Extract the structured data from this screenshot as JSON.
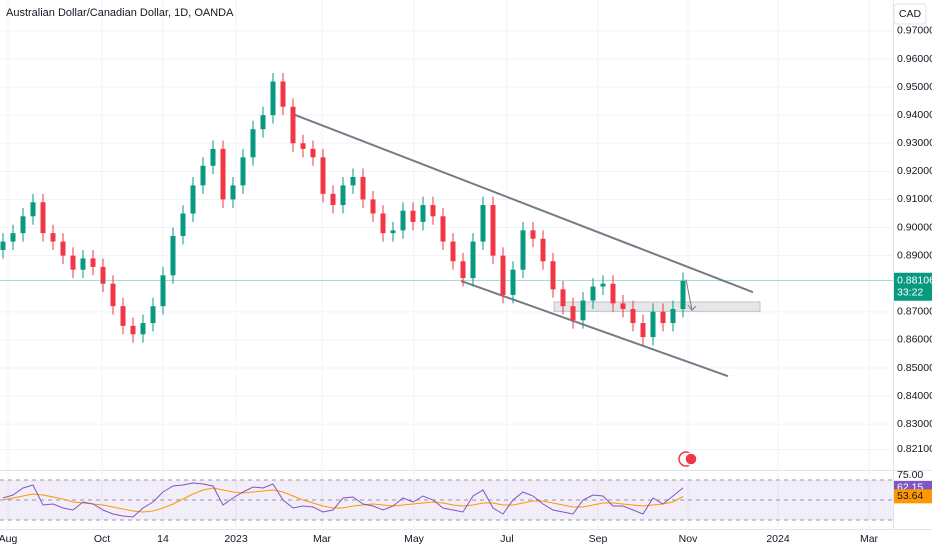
{
  "chart_data": {
    "type": "candlestick",
    "title": "Australian Dollar/Canadian Dollar, 1D, OANDA",
    "currency": "CAD",
    "countdown": "33:22",
    "up_color": "#089981",
    "down_color": "#f23645",
    "grid": true,
    "candles": [
      [
        0.892,
        0.898,
        0.889,
        0.895
      ],
      [
        0.895,
        0.901,
        0.892,
        0.898
      ],
      [
        0.898,
        0.907,
        0.895,
        0.904
      ],
      [
        0.904,
        0.912,
        0.901,
        0.909
      ],
      [
        0.909,
        0.912,
        0.895,
        0.898
      ],
      [
        0.898,
        0.901,
        0.892,
        0.895
      ],
      [
        0.895,
        0.898,
        0.887,
        0.89
      ],
      [
        0.89,
        0.893,
        0.882,
        0.885
      ],
      [
        0.885,
        0.892,
        0.882,
        0.889
      ],
      [
        0.889,
        0.892,
        0.883,
        0.886
      ],
      [
        0.886,
        0.889,
        0.877,
        0.88
      ],
      [
        0.88,
        0.883,
        0.869,
        0.872
      ],
      [
        0.872,
        0.875,
        0.862,
        0.865
      ],
      [
        0.865,
        0.868,
        0.859,
        0.862
      ],
      [
        0.862,
        0.869,
        0.859,
        0.866
      ],
      [
        0.866,
        0.875,
        0.863,
        0.872
      ],
      [
        0.872,
        0.886,
        0.869,
        0.883
      ],
      [
        0.883,
        0.9,
        0.88,
        0.897
      ],
      [
        0.897,
        0.908,
        0.894,
        0.905
      ],
      [
        0.905,
        0.918,
        0.902,
        0.915
      ],
      [
        0.915,
        0.925,
        0.912,
        0.922
      ],
      [
        0.922,
        0.931,
        0.919,
        0.928
      ],
      [
        0.928,
        0.931,
        0.907,
        0.91
      ],
      [
        0.91,
        0.918,
        0.907,
        0.915
      ],
      [
        0.915,
        0.928,
        0.912,
        0.925
      ],
      [
        0.925,
        0.938,
        0.922,
        0.935
      ],
      [
        0.935,
        0.943,
        0.932,
        0.94
      ],
      [
        0.94,
        0.955,
        0.937,
        0.952
      ],
      [
        0.952,
        0.955,
        0.94,
        0.943
      ],
      [
        0.943,
        0.946,
        0.927,
        0.93
      ],
      [
        0.93,
        0.933,
        0.925,
        0.928
      ],
      [
        0.928,
        0.931,
        0.922,
        0.925
      ],
      [
        0.925,
        0.928,
        0.909,
        0.912
      ],
      [
        0.912,
        0.915,
        0.905,
        0.908
      ],
      [
        0.908,
        0.918,
        0.905,
        0.915
      ],
      [
        0.915,
        0.921,
        0.912,
        0.918
      ],
      [
        0.918,
        0.921,
        0.907,
        0.91
      ],
      [
        0.91,
        0.913,
        0.902,
        0.905
      ],
      [
        0.905,
        0.908,
        0.895,
        0.898
      ],
      [
        0.898,
        0.902,
        0.895,
        0.899
      ],
      [
        0.899,
        0.909,
        0.896,
        0.906
      ],
      [
        0.906,
        0.909,
        0.899,
        0.902
      ],
      [
        0.902,
        0.911,
        0.899,
        0.908
      ],
      [
        0.908,
        0.911,
        0.901,
        0.904
      ],
      [
        0.904,
        0.907,
        0.892,
        0.895
      ],
      [
        0.895,
        0.898,
        0.885,
        0.888
      ],
      [
        0.888,
        0.891,
        0.879,
        0.882
      ],
      [
        0.882,
        0.898,
        0.879,
        0.895
      ],
      [
        0.895,
        0.911,
        0.892,
        0.908
      ],
      [
        0.908,
        0.911,
        0.887,
        0.89
      ],
      [
        0.89,
        0.893,
        0.873,
        0.876
      ],
      [
        0.876,
        0.888,
        0.873,
        0.885
      ],
      [
        0.885,
        0.902,
        0.882,
        0.899
      ],
      [
        0.899,
        0.902,
        0.893,
        0.896
      ],
      [
        0.896,
        0.899,
        0.885,
        0.888
      ],
      [
        0.888,
        0.891,
        0.875,
        0.878
      ],
      [
        0.878,
        0.881,
        0.869,
        0.872
      ],
      [
        0.872,
        0.875,
        0.864,
        0.867
      ],
      [
        0.867,
        0.877,
        0.864,
        0.874
      ],
      [
        0.874,
        0.882,
        0.871,
        0.879
      ],
      [
        0.879,
        0.883,
        0.876,
        0.88
      ],
      [
        0.88,
        0.883,
        0.87,
        0.873
      ],
      [
        0.873,
        0.876,
        0.868,
        0.871
      ],
      [
        0.871,
        0.874,
        0.863,
        0.866
      ],
      [
        0.866,
        0.869,
        0.858,
        0.861
      ],
      [
        0.861,
        0.873,
        0.858,
        0.87
      ],
      [
        0.87,
        0.873,
        0.863,
        0.866
      ],
      [
        0.866,
        0.874,
        0.863,
        0.871
      ],
      [
        0.871,
        0.884,
        0.868,
        0.88106
      ]
    ],
    "xlim": [
      -0.3,
      89
    ],
    "xticks": [
      {
        "value": 0.5,
        "label": "Aug"
      },
      {
        "value": 9.9,
        "label": "Oct"
      },
      {
        "value": 16.0,
        "label": "14"
      },
      {
        "value": 23.3,
        "label": "2023"
      },
      {
        "value": 31.9,
        "label": "Mar"
      },
      {
        "value": 41.1,
        "label": "May"
      },
      {
        "value": 50.4,
        "label": "Jul"
      },
      {
        "value": 59.5,
        "label": "Sep"
      },
      {
        "value": 68.5,
        "label": "Nov"
      },
      {
        "value": 77.5,
        "label": "2024"
      },
      {
        "value": 86.6,
        "label": "Mar"
      }
    ],
    "ylim": [
      0.8144,
      0.981
    ],
    "yticks": [
      {
        "value": 0.97,
        "label": "0.97000"
      },
      {
        "value": 0.96,
        "label": "0.96000"
      },
      {
        "value": 0.95,
        "label": "0.95000"
      },
      {
        "value": 0.94,
        "label": "0.94000"
      },
      {
        "value": 0.93,
        "label": "0.93000"
      },
      {
        "value": 0.92,
        "label": "0.92000"
      },
      {
        "value": 0.91,
        "label": "0.91000"
      },
      {
        "value": 0.9,
        "label": "0.90000"
      },
      {
        "value": 0.89,
        "label": "0.89000"
      },
      {
        "value": 0.87,
        "label": "0.87000"
      },
      {
        "value": 0.86,
        "label": "0.86000"
      },
      {
        "value": 0.85,
        "label": "0.85000"
      },
      {
        "value": 0.84,
        "label": "0.84000"
      },
      {
        "value": 0.83,
        "label": "0.83000"
      },
      {
        "value": 0.821,
        "label": "0.82100"
      }
    ],
    "trend_lines": [
      {
        "x": [
          29.2,
          75.0
        ],
        "y": [
          0.9401,
          0.877
        ]
      },
      {
        "x": [
          45.8,
          72.5
        ],
        "y": [
          0.881,
          0.8471
        ]
      }
    ],
    "zone": {
      "x": [
        55.1,
        75.7
      ],
      "y": [
        0.8735,
        0.8702
      ]
    },
    "arrow": {
      "x": [
        68.3,
        68.9
      ],
      "y": [
        0.8815,
        0.8706
      ]
    },
    "rsi": {
      "color": "#7e57c2",
      "ma_color": "#ff9800",
      "ylim": [
        22,
        79
      ],
      "yticks": [
        {
          "value": 75,
          "label": "75.00"
        }
      ],
      "bands": [
        70,
        50,
        30
      ],
      "values": [
        52,
        55,
        62,
        65,
        45,
        46,
        42,
        40,
        48,
        46,
        40,
        36,
        34,
        33,
        42,
        48,
        58,
        64,
        65,
        67,
        66,
        64,
        45,
        52,
        58,
        63,
        62,
        66,
        50,
        42,
        44,
        43,
        38,
        40,
        52,
        53,
        46,
        44,
        40,
        44,
        52,
        48,
        54,
        50,
        42,
        40,
        38,
        54,
        60,
        42,
        36,
        50,
        58,
        54,
        46,
        40,
        38,
        36,
        50,
        55,
        54,
        44,
        44,
        40,
        36,
        52,
        46,
        54,
        62.15
      ],
      "ma": [
        50,
        52,
        54,
        56,
        55,
        53,
        51,
        48,
        47,
        46,
        45,
        43,
        41,
        39,
        38,
        39,
        42,
        46,
        51,
        56,
        60,
        62,
        60,
        58,
        57,
        58,
        59,
        60,
        58,
        54,
        50,
        47,
        44,
        42,
        42,
        44,
        45,
        46,
        45,
        44,
        45,
        46,
        47,
        48,
        47,
        45,
        44,
        45,
        47,
        47,
        45,
        45,
        47,
        49,
        49,
        47,
        45,
        43,
        43,
        45,
        47,
        47,
        46,
        45,
        44,
        45,
        46,
        48,
        53.64
      ]
    }
  }
}
